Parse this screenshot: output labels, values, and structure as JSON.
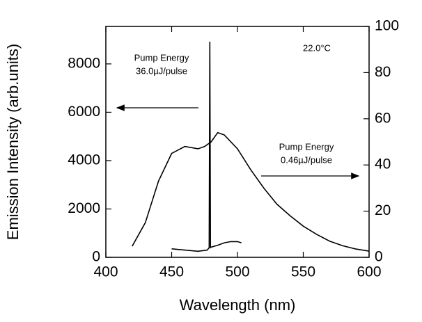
{
  "chart_data": {
    "type": "line",
    "x_label": "Wavelength (nm)",
    "y_label": "Emission Intensity (arb.units)",
    "xlim": [
      400,
      600
    ],
    "xticks": [
      400,
      450,
      500,
      550,
      600
    ],
    "ylim": [
      0,
      9550
    ],
    "yticks": [
      0,
      2000,
      4000,
      6000,
      8000
    ],
    "y2lim": [
      0,
      100
    ],
    "y2ticks": [
      0,
      20,
      40,
      60,
      80,
      100
    ],
    "annotations": [
      "22.0°C",
      "Pump Energy",
      "36.0µJ/pulse",
      "Pump Energy",
      "0.46µJ/pulse"
    ],
    "series": [
      {
        "name": "Pump Energy 36.0µJ/pulse",
        "color": "#000000",
        "axis": "y",
        "x": [
          450,
          460,
          470,
          477,
          478.5,
          479,
          479.5,
          480,
          485,
          490,
          495,
          500,
          503
        ],
        "values": [
          350,
          300,
          250,
          300,
          400,
          8920,
          400,
          420,
          500,
          600,
          650,
          650,
          600
        ]
      },
      {
        "name": "Pump Energy 0.46µJ/pulse",
        "color": "#000000",
        "axis": "y2",
        "x": [
          420,
          430,
          440,
          450,
          460,
          470,
          475,
          480,
          485,
          490,
          500,
          510,
          520,
          530,
          540,
          550,
          560,
          570,
          580,
          590,
          600
        ],
        "values": [
          4.8,
          15,
          33,
          45,
          48,
          47,
          48,
          50,
          54,
          53,
          47,
          38,
          30,
          23,
          18,
          13.5,
          10,
          7,
          5,
          3.6,
          2.7
        ]
      }
    ]
  }
}
